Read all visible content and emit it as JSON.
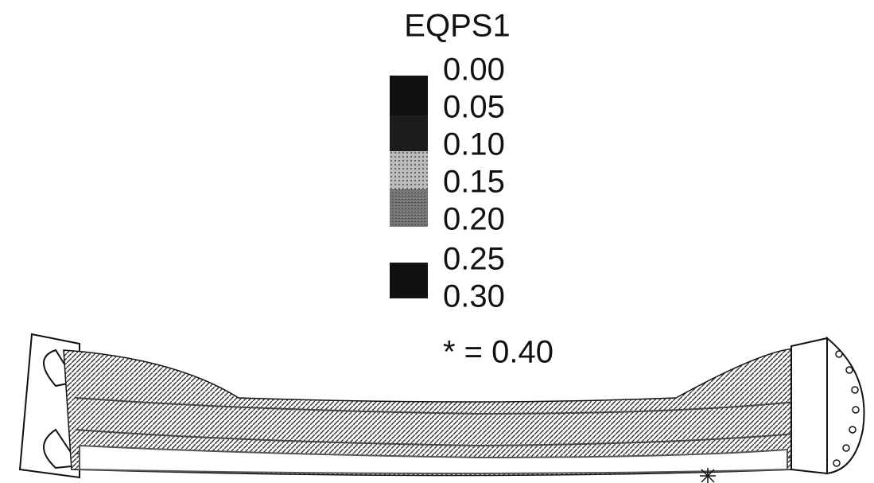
{
  "legend": {
    "title": "EQPS1",
    "labels": [
      "0.00",
      "0.05",
      "0.10",
      "0.15",
      "0.20",
      "0.25",
      "0.30"
    ],
    "note": "* = 0.40"
  }
}
